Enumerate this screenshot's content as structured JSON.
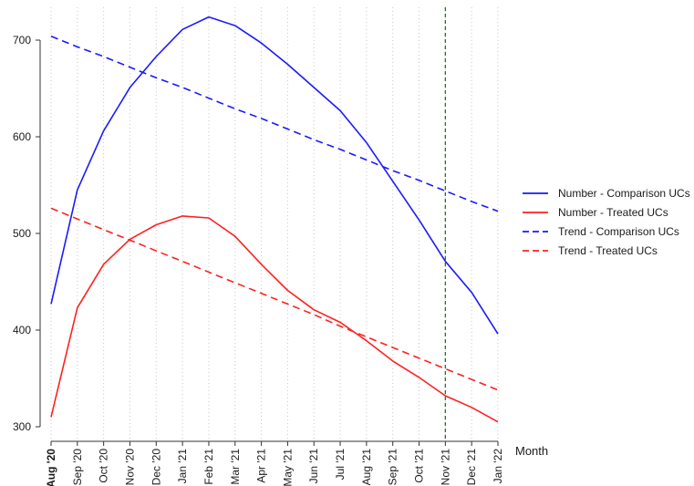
{
  "chart_data": {
    "type": "line",
    "title": "",
    "xlabel": "Month",
    "ylabel": "",
    "ylim": [
      300,
      700
    ],
    "yticks": [
      300,
      400,
      500,
      600,
      700
    ],
    "categories": [
      "Aug '20",
      "Sep '20",
      "Oct '20",
      "Nov '20",
      "Dec '20",
      "Jan '21",
      "Feb '21",
      "Mar '21",
      "Apr '21",
      "May '21",
      "Jun '21",
      "Jul '21",
      "Aug '21",
      "Sep '21",
      "Oct '21",
      "Nov '21",
      "Dec '21",
      "Jan '22"
    ],
    "bold_category_index": 0,
    "grid": true,
    "legend_position": "right",
    "vline": {
      "category": "Nov '21",
      "color": "#1f7a1f",
      "style": "dashed"
    },
    "series": [
      {
        "name": "Number - Comparison UCs",
        "color": "#1a1aff",
        "dash": false,
        "values": [
          427,
          545,
          606,
          651,
          683,
          711,
          724,
          715,
          697,
          675,
          651,
          627,
          594,
          554,
          514,
          471,
          439,
          396
        ]
      },
      {
        "name": "Number - Treated UCs",
        "color": "#ff2020",
        "dash": false,
        "values": [
          310,
          423,
          468,
          494,
          509,
          518,
          516,
          497,
          468,
          441,
          421,
          408,
          389,
          368,
          351,
          332,
          320,
          305
        ]
      },
      {
        "name": "Trend - Comparison UCs",
        "color": "#1a1aff",
        "dash": true,
        "values": [
          704,
          693,
          683,
          672,
          661,
          651,
          640,
          629,
          619,
          608,
          597,
          587,
          576,
          565,
          555,
          544,
          533,
          523
        ]
      },
      {
        "name": "Trend - Treated UCs",
        "color": "#ff2020",
        "dash": true,
        "values": [
          526,
          515,
          504,
          493,
          482,
          471,
          460,
          449,
          438,
          427,
          416,
          404,
          393,
          382,
          371,
          360,
          349,
          338
        ]
      }
    ]
  }
}
